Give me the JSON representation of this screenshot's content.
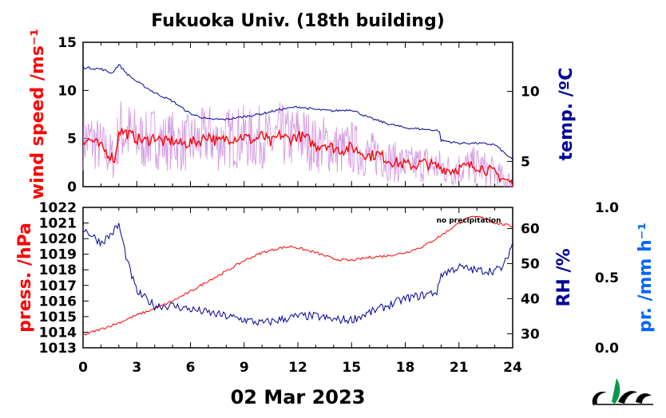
{
  "chart_data": [
    {
      "type": "line",
      "title": "Fukuoka Univ. (18th building)",
      "xlabel": "02 Mar 2023",
      "x_ticks": [
        0,
        3,
        6,
        9,
        12,
        15,
        18,
        21,
        24
      ],
      "xlim": [
        0,
        24
      ],
      "left_axis": {
        "label": "wind speed /ms⁻¹",
        "ylim": [
          0,
          15
        ],
        "ticks": [
          0,
          5,
          10,
          15
        ],
        "color": "#ff0000"
      },
      "right_axis": {
        "label": "temp. /ºC",
        "ylim": [
          3.2,
          13.5
        ],
        "ticks": [
          5,
          10
        ],
        "color": "#000099"
      },
      "series": [
        {
          "axis": "left",
          "color": "#ff0000",
          "x": [
            0,
            0.5,
            1,
            1.5,
            1.8,
            2,
            2.5,
            3,
            3.5,
            4,
            4.5,
            5,
            5.5,
            6,
            6.5,
            7,
            7.5,
            8,
            8.5,
            9,
            9.5,
            10,
            10.5,
            11,
            11.5,
            12,
            12.5,
            13,
            13.5,
            14,
            14.5,
            15,
            15.5,
            16,
            16.5,
            17,
            17.5,
            18,
            18.5,
            19,
            19.5,
            20,
            20.5,
            21,
            21.5,
            22,
            22.5,
            23,
            23.5,
            24
          ],
          "y": [
            4.9,
            4.8,
            4.1,
            3.3,
            2.8,
            5.9,
            5.5,
            5.0,
            4.7,
            5.2,
            4.6,
            4.8,
            4.4,
            4.6,
            4.7,
            5.4,
            4.6,
            5.0,
            5.1,
            5.2,
            4.8,
            5.3,
            4.5,
            5.4,
            4.9,
            5.3,
            5.0,
            4.2,
            4.5,
            4.0,
            3.8,
            4.1,
            3.6,
            3.2,
            3.4,
            2.8,
            2.5,
            2.3,
            2.2,
            2.5,
            2.2,
            2.0,
            1.7,
            1.9,
            2.1,
            2.2,
            1.8,
            1.4,
            0.8,
            0.3
          ]
        },
        {
          "axis": "left",
          "color": "#cc88dd",
          "x": [
            0,
            0.5,
            1,
            1.5,
            1.8,
            2,
            2.5,
            3,
            3.5,
            4,
            4.5,
            5,
            5.5,
            6,
            6.5,
            7,
            7.5,
            8,
            8.5,
            9,
            9.5,
            10,
            10.5,
            11,
            11.5,
            12,
            12.5,
            13,
            13.5,
            14,
            14.5,
            15,
            15.5,
            16,
            16.5,
            17,
            17.5,
            18,
            18.5,
            19,
            19.5,
            20,
            20.5,
            21,
            21.5,
            22,
            22.5,
            23,
            23.5,
            24
          ],
          "y": [
            4.9,
            4.8,
            4.1,
            3.3,
            2.8,
            5.9,
            5.5,
            5.0,
            4.7,
            5.2,
            4.6,
            4.8,
            4.4,
            4.6,
            4.7,
            5.4,
            4.6,
            5.0,
            5.1,
            5.2,
            4.8,
            5.3,
            4.5,
            5.4,
            4.9,
            5.3,
            5.0,
            4.2,
            4.5,
            4.0,
            3.8,
            4.1,
            3.6,
            3.2,
            3.4,
            2.8,
            2.5,
            2.3,
            2.2,
            2.5,
            2.2,
            2.0,
            1.7,
            1.9,
            2.1,
            2.2,
            1.8,
            1.4,
            0.8,
            0.3
          ]
        },
        {
          "axis": "right",
          "color": "#000099",
          "x": [
            0,
            1,
            1.6,
            2,
            2.5,
            3,
            4,
            5,
            6,
            7,
            8,
            9,
            10,
            11,
            12,
            13,
            14,
            15,
            16,
            17,
            18,
            19,
            19.9,
            20,
            21,
            22,
            23,
            24
          ],
          "y": [
            11.7,
            11.6,
            11.3,
            11.9,
            11.2,
            10.7,
            9.9,
            9.3,
            8.4,
            8.0,
            8.0,
            8.2,
            8.4,
            8.7,
            8.9,
            8.7,
            8.6,
            8.7,
            8.1,
            7.7,
            7.4,
            7.3,
            7.2,
            6.5,
            6.3,
            6.3,
            6.2,
            5.1
          ]
        }
      ]
    },
    {
      "type": "line",
      "xlabel": "02 Mar 2023",
      "x_ticks": [
        0,
        3,
        6,
        9,
        12,
        15,
        18,
        21,
        24
      ],
      "xlim": [
        0,
        24
      ],
      "left_axis": {
        "label": "press. /hPa",
        "ylim": [
          1013,
          1022
        ],
        "ticks": [
          1013,
          1014,
          1015,
          1016,
          1017,
          1018,
          1019,
          1020,
          1021,
          1022
        ],
        "color": "#ff0000"
      },
      "right_axis": {
        "label": "RH /%",
        "ylim": [
          26,
          66
        ],
        "ticks": [
          30,
          40,
          50,
          60
        ],
        "color": "#000099"
      },
      "extra_axis": {
        "label": "pr. /mm h⁻¹",
        "ticks": [
          "0.0",
          "0.5",
          "1.0"
        ],
        "color": "#0066ff"
      },
      "annotation": "no precipitation",
      "series": [
        {
          "axis": "left",
          "color": "#ff0000",
          "x": [
            0,
            1,
            2,
            3,
            4,
            5,
            6,
            7,
            8,
            9,
            10,
            11,
            11.7,
            12,
            13,
            14,
            14.8,
            15,
            16,
            17,
            18,
            19,
            20,
            21,
            21.5,
            22,
            22.5,
            23,
            23.5,
            24
          ],
          "y": [
            1013.8,
            1014.2,
            1014.6,
            1015.1,
            1015.5,
            1016.0,
            1016.6,
            1017.3,
            1017.9,
            1018.6,
            1019.1,
            1019.4,
            1019.5,
            1019.4,
            1019.1,
            1018.7,
            1018.6,
            1018.6,
            1018.8,
            1018.9,
            1019.1,
            1019.5,
            1020.2,
            1021.0,
            1021.3,
            1021.4,
            1021.3,
            1021.0,
            1020.9,
            1020.8
          ]
        },
        {
          "axis": "right",
          "color": "#000099",
          "x": [
            0,
            0.5,
            1,
            1.5,
            2,
            2.5,
            3,
            3.5,
            4,
            5,
            6,
            7,
            8,
            9,
            10,
            11,
            12,
            13,
            14,
            15,
            16,
            17,
            18,
            19,
            19.8,
            20,
            21,
            22,
            23,
            23.5,
            24
          ],
          "y": [
            60,
            58,
            56,
            58,
            61,
            50,
            42,
            40,
            38,
            38,
            37,
            36,
            35,
            34,
            33,
            34,
            35,
            35,
            34,
            34,
            36,
            38,
            40,
            41,
            42,
            47,
            49,
            48,
            48,
            49,
            56
          ]
        }
      ]
    }
  ]
}
